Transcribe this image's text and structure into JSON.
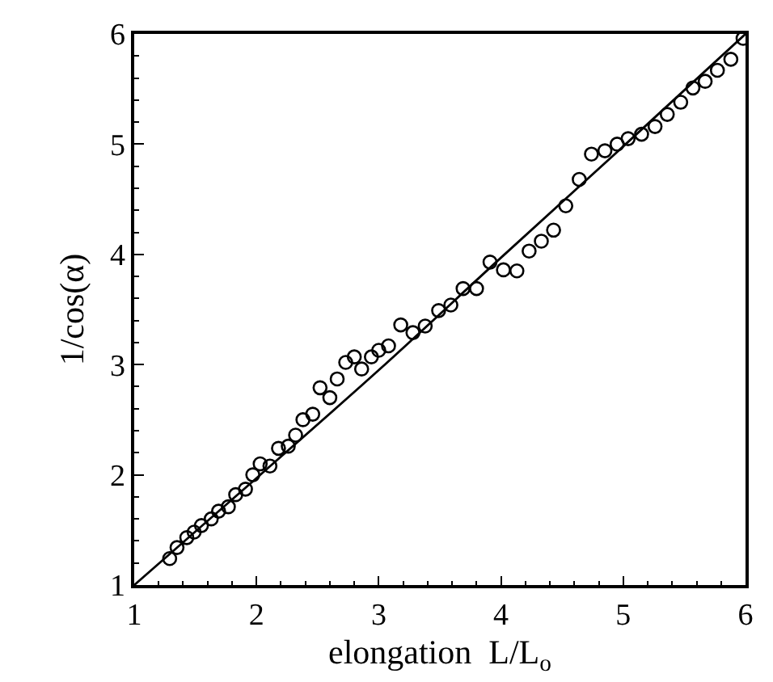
{
  "chart_data": {
    "type": "scatter",
    "xlabel": "elongation  L/L$_{o}$",
    "ylabel": "1/cos(α)",
    "xlim": [
      1,
      6
    ],
    "ylim": [
      1,
      6
    ],
    "xticks": [
      1,
      2,
      3,
      4,
      5,
      6
    ],
    "yticks": [
      1,
      2,
      3,
      4,
      5,
      6
    ],
    "legend": false,
    "series": [
      {
        "color": "#000000",
        "marker": "circle",
        "x": [
          1.29,
          1.35,
          1.43,
          1.49,
          1.55,
          1.63,
          1.69,
          1.77,
          1.83,
          1.91,
          1.97,
          2.03,
          2.11,
          2.18,
          2.26,
          2.32,
          2.38,
          2.46,
          2.52,
          2.6,
          2.66,
          2.73,
          2.8,
          2.86,
          2.94,
          3.0,
          3.08,
          3.18,
          3.28,
          3.38,
          3.49,
          3.59,
          3.69,
          3.8,
          3.91,
          4.02,
          4.13,
          4.23,
          4.33,
          4.43,
          4.53,
          4.64,
          4.74,
          4.85,
          4.95,
          5.04,
          5.15,
          5.26,
          5.36,
          5.47,
          5.57,
          5.67,
          5.77,
          5.88,
          5.98
        ],
        "values": [
          1.24,
          1.34,
          1.43,
          1.48,
          1.54,
          1.6,
          1.67,
          1.71,
          1.82,
          1.87,
          2.0,
          2.1,
          2.08,
          2.24,
          2.26,
          2.36,
          2.5,
          2.55,
          2.79,
          2.7,
          2.87,
          3.02,
          3.07,
          2.96,
          3.07,
          3.13,
          3.17,
          3.36,
          3.29,
          3.35,
          3.49,
          3.54,
          3.69,
          3.69,
          3.93,
          3.86,
          3.85,
          4.03,
          4.12,
          4.22,
          4.44,
          4.68,
          4.91,
          4.94,
          5.0,
          5.05,
          5.09,
          5.16,
          5.27,
          5.38,
          5.51,
          5.57,
          5.67,
          5.77,
          5.96
        ]
      },
      {
        "type": "line",
        "color": "#000000",
        "line_style": "solid",
        "x": [
          1,
          2,
          3,
          4,
          5,
          6
        ],
        "values": [
          1,
          1.97,
          2.95,
          3.97,
          4.98,
          6
        ]
      }
    ]
  }
}
